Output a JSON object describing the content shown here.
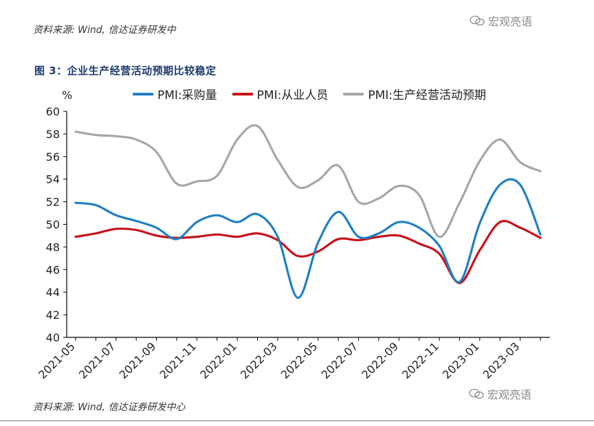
{
  "source_top": "资料来源: Wind, 信达证券研发中",
  "source_bottom": "资料来源: Wind, 信达证券研发中心",
  "watermark": "宏观亮语",
  "figure_title": "图 3：企业生产经营活动预期比较稳定",
  "chart_data": {
    "type": "line",
    "ylabel": "%",
    "ylim": [
      40,
      60
    ],
    "yticks": [
      40,
      42,
      44,
      46,
      48,
      50,
      52,
      54,
      56,
      58,
      60
    ],
    "x": [
      "2021-05",
      "2021-06",
      "2021-07",
      "2021-08",
      "2021-09",
      "2021-10",
      "2021-11",
      "2021-12",
      "2022-01",
      "2022-02",
      "2022-03",
      "2022-04",
      "2022-05",
      "2022-06",
      "2022-07",
      "2022-08",
      "2022-09",
      "2022-10",
      "2022-11",
      "2022-12",
      "2023-01",
      "2023-02",
      "2023-03",
      "2023-04"
    ],
    "xtick_labels": [
      "2021-05",
      "2021-07",
      "2021-09",
      "2021-11",
      "2022-01",
      "2022-03",
      "2022-05",
      "2022-07",
      "2022-09",
      "2022-11",
      "2023-01",
      "2023-03"
    ],
    "series": [
      {
        "name": "PMI:采购量",
        "color": "#1f7fc4",
        "values": [
          51.9,
          51.7,
          50.8,
          50.3,
          49.7,
          48.7,
          50.2,
          50.8,
          50.2,
          50.9,
          48.9,
          43.5,
          48.4,
          51.1,
          48.9,
          49.2,
          50.2,
          49.7,
          48.1,
          44.9,
          50.1,
          53.5,
          53.5,
          49.1
        ]
      },
      {
        "name": "PMI:从业人员",
        "color": "#c8121a",
        "values": [
          48.9,
          49.2,
          49.6,
          49.5,
          49.0,
          48.8,
          48.9,
          49.1,
          48.9,
          49.2,
          48.6,
          47.2,
          47.6,
          48.7,
          48.6,
          48.9,
          49.0,
          48.3,
          47.4,
          44.8,
          47.7,
          50.2,
          49.7,
          48.8
        ]
      },
      {
        "name": "PMI:生产经营活动预期",
        "color": "#a6a6a6",
        "values": [
          58.2,
          57.9,
          57.8,
          57.5,
          56.4,
          53.6,
          53.8,
          54.3,
          57.5,
          58.7,
          55.7,
          53.3,
          53.9,
          55.2,
          52.0,
          52.3,
          53.4,
          52.6,
          48.9,
          51.9,
          55.6,
          57.5,
          55.5,
          54.7
        ]
      }
    ]
  }
}
